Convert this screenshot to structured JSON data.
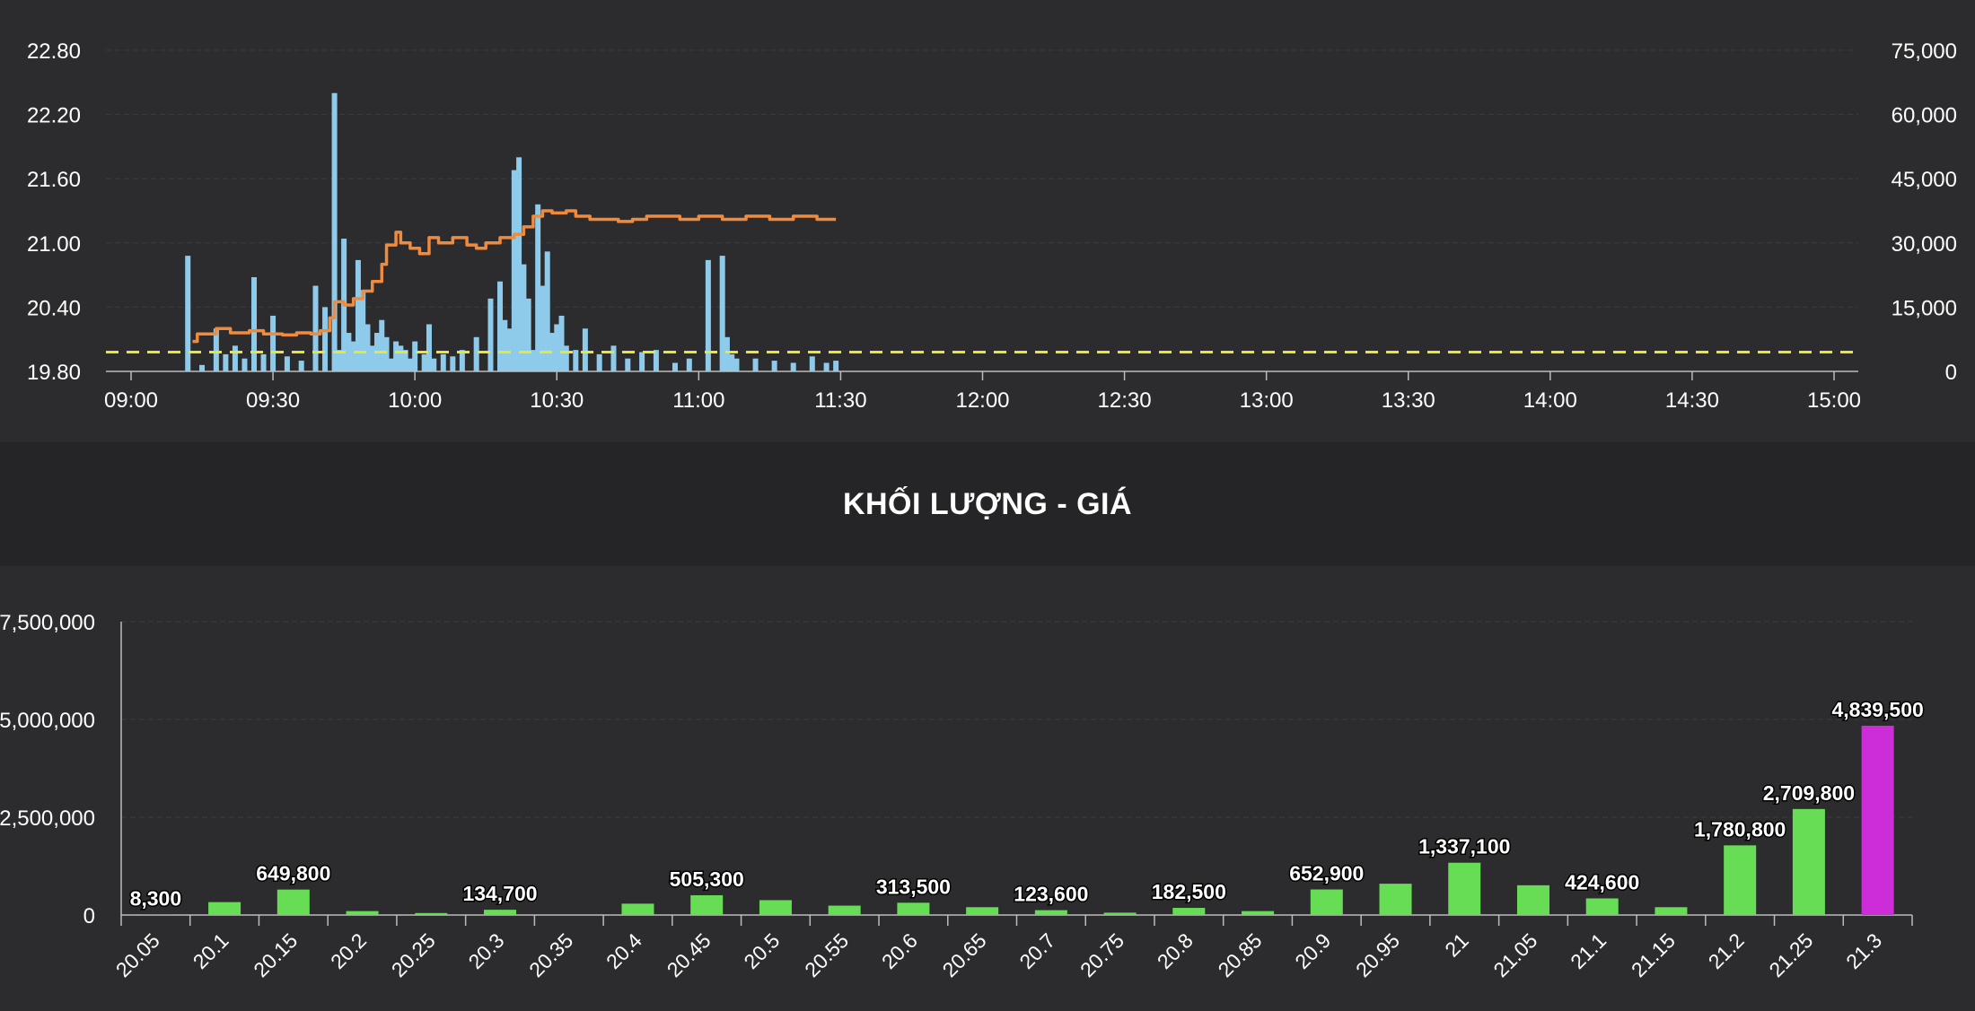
{
  "chart_data": [
    {
      "type": "line",
      "title": "",
      "x_ticks": [
        "09:00",
        "09:30",
        "10:00",
        "10:30",
        "11:00",
        "11:30",
        "12:00",
        "12:30",
        "13:00",
        "13:30",
        "14:00",
        "14:30",
        "15:00"
      ],
      "y_left_ticks": [
        "19.80",
        "20.40",
        "21.00",
        "21.60",
        "22.20",
        "22.80"
      ],
      "y_left_range": [
        19.8,
        22.8
      ],
      "y_right_ticks": [
        "0",
        "15,000",
        "30,000",
        "45,000",
        "60,000",
        "75,000"
      ],
      "y_right_range": [
        0,
        75000
      ],
      "reference_price": 19.98,
      "grid": true,
      "colors": {
        "price": "#f08a3c",
        "volume": "#8ecbeb",
        "reference": "#e8e63a"
      },
      "series": [
        {
          "kind": "price",
          "x": [
            "09:13",
            "09:14",
            "09:18",
            "09:21",
            "09:25",
            "09:28",
            "09:32",
            "09:35",
            "09:38",
            "09:40",
            "09:42",
            "09:43",
            "09:45",
            "09:47",
            "09:49",
            "09:51",
            "09:53",
            "09:54",
            "09:56",
            "09:57",
            "09:59",
            "10:01",
            "10:03",
            "10:05",
            "10:08",
            "10:11",
            "10:13",
            "10:15",
            "10:18",
            "10:21",
            "10:23",
            "10:25",
            "10:27",
            "10:29",
            "10:32",
            "10:34",
            "10:37",
            "10:40",
            "10:43",
            "10:46",
            "10:49",
            "10:52",
            "10:56",
            "11:00",
            "11:05",
            "11:10",
            "11:15",
            "11:20",
            "11:25",
            "11:29"
          ],
          "values": [
            20.08,
            20.15,
            20.2,
            20.16,
            20.18,
            20.15,
            20.14,
            20.16,
            20.15,
            20.18,
            20.3,
            20.45,
            20.42,
            20.48,
            20.55,
            20.64,
            20.8,
            20.98,
            21.1,
            21.0,
            20.95,
            20.9,
            21.05,
            21.0,
            21.05,
            20.98,
            20.95,
            21.0,
            21.05,
            21.08,
            21.15,
            21.25,
            21.3,
            21.28,
            21.3,
            21.25,
            21.22,
            21.22,
            21.2,
            21.22,
            21.25,
            21.25,
            21.22,
            21.25,
            21.22,
            21.25,
            21.22,
            21.25,
            21.22,
            21.22
          ]
        },
        {
          "kind": "volume",
          "x": [
            "09:12",
            "09:15",
            "09:18",
            "09:20",
            "09:22",
            "09:24",
            "09:26",
            "09:28",
            "09:30",
            "09:33",
            "09:36",
            "09:39",
            "09:41",
            "09:43",
            "09:44",
            "09:45",
            "09:46",
            "09:47",
            "09:48",
            "09:49",
            "09:50",
            "09:51",
            "09:52",
            "09:53",
            "09:54",
            "09:55",
            "09:56",
            "09:57",
            "09:58",
            "09:59",
            "10:00",
            "10:02",
            "10:03",
            "10:04",
            "10:06",
            "10:08",
            "10:10",
            "10:13",
            "10:16",
            "10:18",
            "10:19",
            "10:20",
            "10:21",
            "10:22",
            "10:23",
            "10:24",
            "10:25",
            "10:26",
            "10:27",
            "10:28",
            "10:29",
            "10:30",
            "10:31",
            "10:32",
            "10:34",
            "10:36",
            "10:39",
            "10:42",
            "10:45",
            "10:48",
            "10:51",
            "10:55",
            "10:58",
            "11:02",
            "11:05",
            "11:06",
            "11:07",
            "11:08",
            "11:12",
            "11:16",
            "11:20",
            "11:24",
            "11:27",
            "11:29"
          ],
          "values": [
            27000,
            1500,
            10000,
            4000,
            6000,
            3000,
            22000,
            4000,
            13000,
            3500,
            2500,
            20000,
            15000,
            65000,
            5000,
            31000,
            9000,
            7000,
            26000,
            19000,
            11000,
            6000,
            9000,
            12000,
            8000,
            3000,
            7000,
            6000,
            5000,
            3000,
            7000,
            4000,
            11000,
            3000,
            4000,
            3500,
            5000,
            8000,
            17000,
            21000,
            12000,
            10000,
            47000,
            50000,
            25000,
            17000,
            5000,
            39000,
            20000,
            28000,
            9000,
            11000,
            13000,
            6000,
            5000,
            10000,
            4000,
            6000,
            3000,
            4500,
            5000,
            2000,
            3000,
            26000,
            27000,
            8000,
            4000,
            3000,
            3000,
            2500,
            2000,
            3500,
            2000,
            2500
          ]
        }
      ]
    },
    {
      "type": "bar",
      "title": "KHỐI LƯỢNG - GIÁ",
      "categories": [
        "20.05",
        "20.1",
        "20.15",
        "20.2",
        "20.25",
        "20.3",
        "20.35",
        "20.4",
        "20.45",
        "20.5",
        "20.55",
        "20.6",
        "20.65",
        "20.7",
        "20.75",
        "20.8",
        "20.85",
        "20.9",
        "20.95",
        "21",
        "21.05",
        "21.1",
        "21.15",
        "21.2",
        "21.25",
        "21.3"
      ],
      "values": [
        8300,
        330000,
        649800,
        100000,
        50000,
        134700,
        0,
        290000,
        505300,
        380000,
        240000,
        313500,
        200000,
        123600,
        60000,
        182500,
        100000,
        652900,
        800000,
        1337100,
        760000,
        424600,
        200000,
        1780800,
        2709800,
        4839500
      ],
      "data_labels": {
        "0": "8,300",
        "2": "649,800",
        "5": "134,700",
        "8": "505,300",
        "11": "313,500",
        "13": "123,600",
        "15": "182,500",
        "17": "652,900",
        "19": "1,337,100",
        "21": "424,600",
        "23": "1,780,800",
        "24": "2,709,800",
        "25": "4,839,500"
      },
      "y_ticks": [
        "0",
        "2,500,000",
        "5,000,000",
        "7,500,000"
      ],
      "ylim": [
        0,
        7500000
      ],
      "grid": true,
      "colors": {
        "bar": "#66dd55",
        "highlight": "#cc2dd6"
      },
      "highlight_category": "21.3"
    }
  ]
}
